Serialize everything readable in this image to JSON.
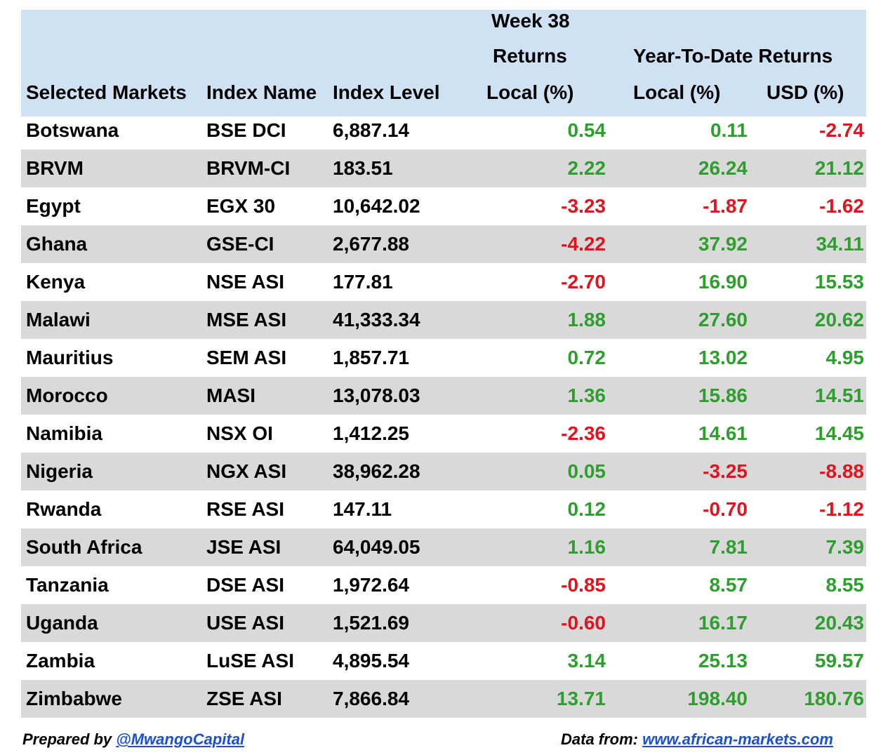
{
  "header": {
    "week_line1": "Week 38",
    "week_line2": "Returns",
    "ytd": "Year-To-Date Returns",
    "col_market": "Selected Markets",
    "col_index": "Index Name",
    "col_level": "Index Level",
    "col_week_local": "Local (%)",
    "col_ytd_local": "Local (%)",
    "col_ytd_usd": "USD (%)"
  },
  "rows": [
    {
      "market": "Botswana",
      "index": "BSE DCI",
      "level": "6,887.14",
      "week": "0.54",
      "ytd_local": "0.11",
      "ytd_usd": "-2.74"
    },
    {
      "market": "BRVM",
      "index": "BRVM-CI",
      "level": "183.51",
      "week": "2.22",
      "ytd_local": "26.24",
      "ytd_usd": "21.12"
    },
    {
      "market": "Egypt",
      "index": "EGX 30",
      "level": "10,642.02",
      "week": "-3.23",
      "ytd_local": "-1.87",
      "ytd_usd": "-1.62"
    },
    {
      "market": "Ghana",
      "index": "GSE-CI",
      "level": "2,677.88",
      "week": "-4.22",
      "ytd_local": "37.92",
      "ytd_usd": "34.11"
    },
    {
      "market": "Kenya",
      "index": "NSE ASI",
      "level": "177.81",
      "week": "-2.70",
      "ytd_local": "16.90",
      "ytd_usd": "15.53"
    },
    {
      "market": "Malawi",
      "index": "MSE ASI",
      "level": "41,333.34",
      "week": "1.88",
      "ytd_local": "27.60",
      "ytd_usd": "20.62"
    },
    {
      "market": "Mauritius",
      "index": "SEM ASI",
      "level": "1,857.71",
      "week": "0.72",
      "ytd_local": "13.02",
      "ytd_usd": "4.95"
    },
    {
      "market": "Morocco",
      "index": "MASI",
      "level": "13,078.03",
      "week": "1.36",
      "ytd_local": "15.86",
      "ytd_usd": "14.51"
    },
    {
      "market": "Namibia",
      "index": "NSX OI",
      "level": "1,412.25",
      "week": "-2.36",
      "ytd_local": "14.61",
      "ytd_usd": "14.45"
    },
    {
      "market": "Nigeria",
      "index": "NGX ASI",
      "level": "38,962.28",
      "week": "0.05",
      "ytd_local": "-3.25",
      "ytd_usd": "-8.88"
    },
    {
      "market": "Rwanda",
      "index": "RSE ASI",
      "level": "147.11",
      "week": "0.12",
      "ytd_local": "-0.70",
      "ytd_usd": "-1.12"
    },
    {
      "market": "South Africa",
      "index": "JSE ASI",
      "level": "64,049.05",
      "week": "1.16",
      "ytd_local": "7.81",
      "ytd_usd": "7.39"
    },
    {
      "market": "Tanzania",
      "index": "DSE ASI",
      "level": "1,972.64",
      "week": "-0.85",
      "ytd_local": "8.57",
      "ytd_usd": "8.55"
    },
    {
      "market": "Uganda",
      "index": "USE ASI",
      "level": "1,521.69",
      "week": "-0.60",
      "ytd_local": "16.17",
      "ytd_usd": "20.43"
    },
    {
      "market": "Zambia",
      "index": "LuSE ASI",
      "level": "4,895.54",
      "week": "3.14",
      "ytd_local": "25.13",
      "ytd_usd": "59.57"
    },
    {
      "market": "Zimbabwe",
      "index": "ZSE ASI",
      "level": "7,866.84",
      "week": "13.71",
      "ytd_local": "198.40",
      "ytd_usd": "180.76"
    }
  ],
  "footer": {
    "prepared_label": "Prepared by ",
    "prepared_link": "@MwangoCapital",
    "data_label": "Data from: ",
    "data_link": "www.african-markets.com"
  },
  "colors": {
    "header_bg": "#cfe2f3",
    "alt_row_bg": "#d9d9d9",
    "positive": "#2e9e2e",
    "negative": "#e0141e",
    "link": "#1a4fd6"
  }
}
